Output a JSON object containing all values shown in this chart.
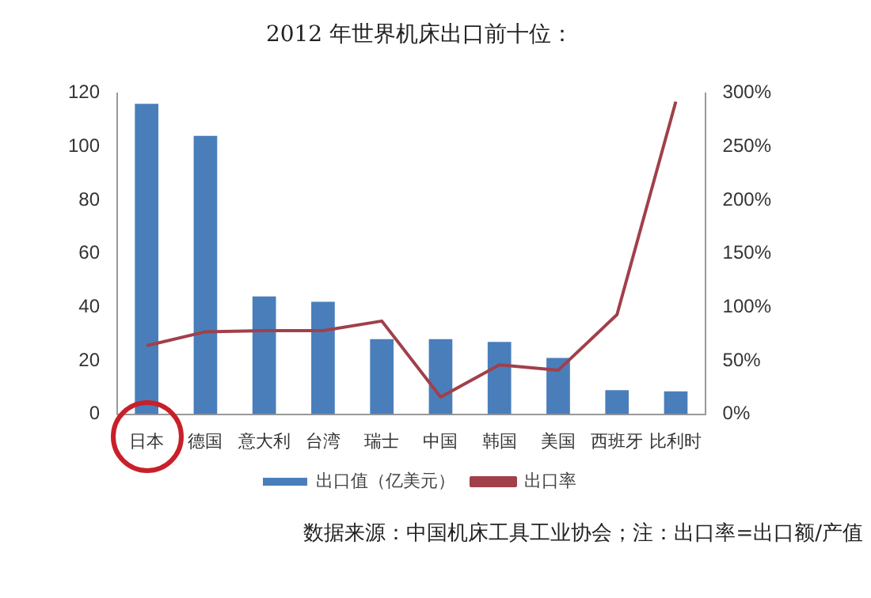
{
  "chart_data": {
    "type": "bar",
    "title": "2012 年世界机床出口前十位：",
    "categories": [
      "日本",
      "德国",
      "意大利",
      "台湾",
      "瑞士",
      "中国",
      "韩国",
      "美国",
      "西班牙",
      "比利时"
    ],
    "series": [
      {
        "name": "出口值（亿美元）",
        "color": "#4a7ebb",
        "values": [
          116,
          104,
          44,
          42,
          28,
          28,
          27,
          21,
          9,
          8.5
        ]
      },
      {
        "name": "出口率",
        "type": "line",
        "axis": "y2",
        "color": "#a0404a",
        "values": [
          64,
          77,
          78,
          78,
          87,
          16,
          46,
          41,
          93,
          292
        ]
      }
    ],
    "ylim": [
      0,
      120
    ],
    "yticks": [
      0,
      20,
      40,
      60,
      80,
      100,
      120
    ],
    "y2lim": [
      0,
      300
    ],
    "y2ticks": [
      {
        "value": 0,
        "label": "0%"
      },
      {
        "value": 50,
        "label": "50%"
      },
      {
        "value": 100,
        "label": "100%"
      },
      {
        "value": 150,
        "label": "150%"
      },
      {
        "value": 200,
        "label": "200%"
      },
      {
        "value": 250,
        "label": "250%"
      },
      {
        "value": 300,
        "label": "300%"
      }
    ],
    "grid": false,
    "legend": "bottom",
    "marker": "none",
    "annotations": [
      "数据来源：中国机床工具工业协会；注：出口率=出口额/产值"
    ]
  }
}
